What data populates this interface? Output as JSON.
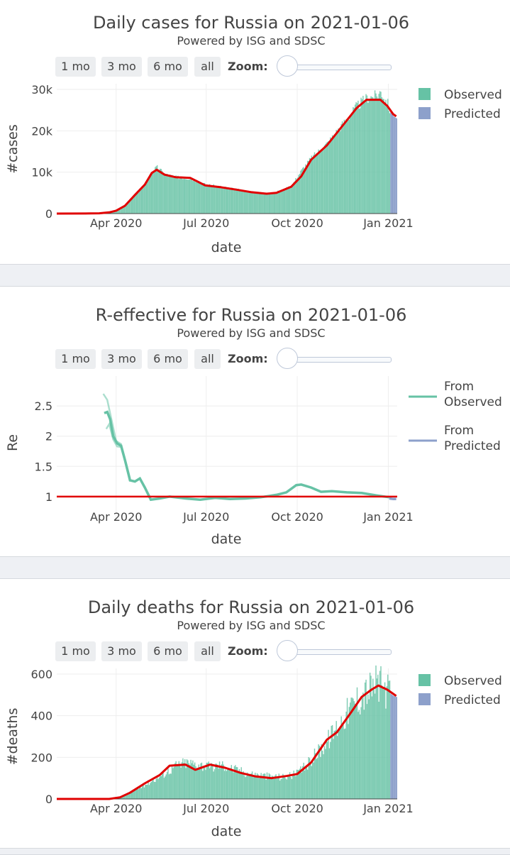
{
  "panels": [
    {
      "title": "Daily cases for Russia on 2021-01-06",
      "subtitle": "Powered by ISG and SDSC",
      "buttons": [
        "1 mo",
        "3 mo",
        "6 mo",
        "all"
      ],
      "zoom_label": "Zoom:",
      "legend": [
        "Observed",
        "Predicted"
      ]
    },
    {
      "title": "R-effective for Russia on 2021-01-06",
      "subtitle": "Powered by ISG and SDSC",
      "buttons": [
        "1 mo",
        "3 mo",
        "6 mo",
        "all"
      ],
      "zoom_label": "Zoom:",
      "legend": [
        "From Observed",
        "From Predicted"
      ]
    },
    {
      "title": "Daily deaths for Russia on 2021-01-06",
      "subtitle": "Powered by ISG and SDSC",
      "buttons": [
        "1 mo",
        "3 mo",
        "6 mo",
        "all"
      ],
      "zoom_label": "Zoom:",
      "legend": [
        "Observed",
        "Predicted"
      ]
    }
  ],
  "colors": {
    "observed": "#66c2a5",
    "predicted": "#8da0cb",
    "trend": "#e00000",
    "grid": "#eeeeee",
    "text": "#444444"
  },
  "chart_data": [
    {
      "type": "bar",
      "title": "Daily cases for Russia on 2021-01-06",
      "subtitle": "Powered by ISG and SDSC",
      "xlabel": "date",
      "ylabel": "#cases",
      "x_ticks": [
        "Apr 2020",
        "Jul 2020",
        "Oct 2020",
        "Jan 2021"
      ],
      "x_tick_dates": [
        "2020-04-01",
        "2020-07-01",
        "2020-10-01",
        "2021-01-01"
      ],
      "y_ticks": [
        "0",
        "10k",
        "20k",
        "30k"
      ],
      "y_tick_values": [
        0,
        10000,
        20000,
        30000
      ],
      "ylim": [
        0,
        30000
      ],
      "xlim": [
        "2020-02-01",
        "2021-01-10"
      ],
      "legend_position": "top-right",
      "series": [
        {
          "name": "Observed",
          "kind": "bar",
          "points": [
            [
              "2020-02-01",
              0
            ],
            [
              "2020-03-01",
              10
            ],
            [
              "2020-03-15",
              60
            ],
            [
              "2020-03-25",
              400
            ],
            [
              "2020-04-01",
              800
            ],
            [
              "2020-04-10",
              1800
            ],
            [
              "2020-04-20",
              4500
            ],
            [
              "2020-04-30",
              7000
            ],
            [
              "2020-05-07",
              10300
            ],
            [
              "2020-05-12",
              11200
            ],
            [
              "2020-05-20",
              9500
            ],
            [
              "2020-05-31",
              8800
            ],
            [
              "2020-06-15",
              8500
            ],
            [
              "2020-06-30",
              7000
            ],
            [
              "2020-07-15",
              6500
            ],
            [
              "2020-07-31",
              5800
            ],
            [
              "2020-08-15",
              5200
            ],
            [
              "2020-08-31",
              4800
            ],
            [
              "2020-09-15",
              5500
            ],
            [
              "2020-09-25",
              6800
            ],
            [
              "2020-10-05",
              10500
            ],
            [
              "2020-10-15",
              13500
            ],
            [
              "2020-10-31",
              17000
            ],
            [
              "2020-11-15",
              21500
            ],
            [
              "2020-11-30",
              26000
            ],
            [
              "2020-12-10",
              28000
            ],
            [
              "2020-12-20",
              28500
            ],
            [
              "2020-12-24",
              29500
            ],
            [
              "2020-12-31",
              26500
            ],
            [
              "2021-01-02",
              25000
            ]
          ]
        },
        {
          "name": "Predicted",
          "kind": "bar",
          "points": [
            [
              "2021-01-03",
              24500
            ],
            [
              "2021-01-06",
              23500
            ],
            [
              "2021-01-09",
              23000
            ]
          ]
        },
        {
          "name": "trend",
          "kind": "line",
          "points": [
            [
              "2020-02-01",
              0
            ],
            [
              "2020-03-01",
              10
            ],
            [
              "2020-03-15",
              60
            ],
            [
              "2020-03-25",
              300
            ],
            [
              "2020-04-01",
              700
            ],
            [
              "2020-04-10",
              1900
            ],
            [
              "2020-04-20",
              4500
            ],
            [
              "2020-04-30",
              7000
            ],
            [
              "2020-05-07",
              9800
            ],
            [
              "2020-05-12",
              10600
            ],
            [
              "2020-05-20",
              9400
            ],
            [
              "2020-05-31",
              8800
            ],
            [
              "2020-06-15",
              8600
            ],
            [
              "2020-06-30",
              6800
            ],
            [
              "2020-07-15",
              6400
            ],
            [
              "2020-07-31",
              5800
            ],
            [
              "2020-08-15",
              5200
            ],
            [
              "2020-08-31",
              4800
            ],
            [
              "2020-09-10",
              5000
            ],
            [
              "2020-09-25",
              6500
            ],
            [
              "2020-10-05",
              9000
            ],
            [
              "2020-10-15",
              13000
            ],
            [
              "2020-10-31",
              16500
            ],
            [
              "2020-11-15",
              21000
            ],
            [
              "2020-11-30",
              25500
            ],
            [
              "2020-12-10",
              27500
            ],
            [
              "2020-12-24",
              27500
            ],
            [
              "2020-12-31",
              26000
            ],
            [
              "2021-01-06",
              24000
            ],
            [
              "2021-01-09",
              23500
            ]
          ]
        }
      ]
    },
    {
      "type": "line",
      "title": "R-effective for Russia on 2021-01-06",
      "subtitle": "Powered by ISG and SDSC",
      "xlabel": "date",
      "ylabel": "Re",
      "x_ticks": [
        "Apr 2020",
        "Jul 2020",
        "Oct 2020",
        "Jan 2021"
      ],
      "x_tick_dates": [
        "2020-04-01",
        "2020-07-01",
        "2020-10-01",
        "2021-01-01"
      ],
      "y_ticks": [
        "1",
        "1.5",
        "2",
        "2.5"
      ],
      "y_tick_values": [
        1,
        1.5,
        2,
        2.5
      ],
      "ylim": [
        0.6,
        2.9
      ],
      "xlim": [
        "2020-02-01",
        "2021-01-10"
      ],
      "grid": true,
      "legend_position": "top-right",
      "threshold": 1,
      "series": [
        {
          "name": "From Observed",
          "kind": "line",
          "points": [
            [
              "2020-03-20",
              2.38
            ],
            [
              "2020-03-23",
              2.4
            ],
            [
              "2020-03-26",
              2.28
            ],
            [
              "2020-03-29",
              2.0
            ],
            [
              "2020-04-02",
              1.88
            ],
            [
              "2020-04-06",
              1.84
            ],
            [
              "2020-04-10",
              1.6
            ],
            [
              "2020-04-15",
              1.27
            ],
            [
              "2020-04-20",
              1.25
            ],
            [
              "2020-04-25",
              1.3
            ],
            [
              "2020-04-30",
              1.15
            ],
            [
              "2020-05-06",
              0.95
            ],
            [
              "2020-05-15",
              0.97
            ],
            [
              "2020-05-25",
              1.0
            ],
            [
              "2020-06-10",
              0.97
            ],
            [
              "2020-06-25",
              0.95
            ],
            [
              "2020-07-10",
              0.98
            ],
            [
              "2020-07-25",
              0.96
            ],
            [
              "2020-08-10",
              0.97
            ],
            [
              "2020-08-25",
              0.99
            ],
            [
              "2020-09-10",
              1.03
            ],
            [
              "2020-09-20",
              1.07
            ],
            [
              "2020-09-30",
              1.19
            ],
            [
              "2020-10-05",
              1.2
            ],
            [
              "2020-10-15",
              1.15
            ],
            [
              "2020-10-25",
              1.08
            ],
            [
              "2020-11-05",
              1.09
            ],
            [
              "2020-11-20",
              1.07
            ],
            [
              "2020-12-05",
              1.06
            ],
            [
              "2020-12-20",
              1.02
            ],
            [
              "2021-01-02",
              0.99
            ]
          ]
        },
        {
          "name": "From Observed upper",
          "kind": "line",
          "points": [
            [
              "2020-03-19",
              2.7
            ],
            [
              "2020-03-23",
              2.6
            ],
            [
              "2020-03-27",
              2.3
            ],
            [
              "2020-04-01",
              1.92
            ],
            [
              "2020-04-06",
              1.87
            ],
            [
              "2020-04-10",
              1.62
            ],
            [
              "2020-04-15",
              1.3
            ]
          ]
        },
        {
          "name": "From Observed lower",
          "kind": "line",
          "points": [
            [
              "2020-03-22",
              2.12
            ],
            [
              "2020-03-25",
              2.2
            ],
            [
              "2020-03-29",
              1.95
            ],
            [
              "2020-04-02",
              1.83
            ],
            [
              "2020-04-06",
              1.82
            ],
            [
              "2020-04-10",
              1.58
            ],
            [
              "2020-04-15",
              1.25
            ]
          ]
        },
        {
          "name": "From Predicted",
          "kind": "line",
          "points": [
            [
              "2021-01-02",
              0.97
            ],
            [
              "2021-01-06",
              0.96
            ],
            [
              "2021-01-09",
              0.96
            ]
          ]
        }
      ]
    },
    {
      "type": "bar",
      "title": "Daily deaths for Russia on 2021-01-06",
      "subtitle": "Powered by ISG and SDSC",
      "xlabel": "date",
      "ylabel": "#deaths",
      "x_ticks": [
        "Apr 2020",
        "Jul 2020",
        "Oct 2020",
        "Jan 2021"
      ],
      "x_tick_dates": [
        "2020-04-01",
        "2020-07-01",
        "2020-10-01",
        "2021-01-01"
      ],
      "y_ticks": [
        "0",
        "200",
        "400",
        "600"
      ],
      "y_tick_values": [
        0,
        200,
        400,
        600
      ],
      "ylim": [
        0,
        600
      ],
      "xlim": [
        "2020-02-01",
        "2021-01-10"
      ],
      "legend_position": "top-right",
      "series": [
        {
          "name": "Observed",
          "kind": "bar",
          "points": [
            [
              "2020-02-01",
              0
            ],
            [
              "2020-03-20",
              0
            ],
            [
              "2020-04-01",
              5
            ],
            [
              "2020-04-15",
              30
            ],
            [
              "2020-04-30",
              70
            ],
            [
              "2020-05-15",
              110
            ],
            [
              "2020-05-31",
              160
            ],
            [
              "2020-06-10",
              175
            ],
            [
              "2020-06-25",
              165
            ],
            [
              "2020-07-05",
              150
            ],
            [
              "2020-07-15",
              165
            ],
            [
              "2020-07-31",
              140
            ],
            [
              "2020-08-15",
              120
            ],
            [
              "2020-08-31",
              110
            ],
            [
              "2020-09-15",
              105
            ],
            [
              "2020-09-30",
              120
            ],
            [
              "2020-10-10",
              160
            ],
            [
              "2020-10-20",
              220
            ],
            [
              "2020-10-31",
              280
            ],
            [
              "2020-11-10",
              350
            ],
            [
              "2020-11-20",
              420
            ],
            [
              "2020-11-30",
              480
            ],
            [
              "2020-12-10",
              520
            ],
            [
              "2020-12-20",
              560
            ],
            [
              "2020-12-25",
              545
            ],
            [
              "2021-01-02",
              500
            ]
          ]
        },
        {
          "name": "Predicted",
          "kind": "bar",
          "points": [
            [
              "2021-01-03",
              505
            ],
            [
              "2021-01-06",
              495
            ],
            [
              "2021-01-09",
              490
            ]
          ]
        },
        {
          "name": "trend",
          "kind": "line",
          "points": [
            [
              "2020-02-01",
              0
            ],
            [
              "2020-03-25",
              0
            ],
            [
              "2020-04-05",
              8
            ],
            [
              "2020-04-15",
              30
            ],
            [
              "2020-04-30",
              75
            ],
            [
              "2020-05-15",
              115
            ],
            [
              "2020-05-25",
              160
            ],
            [
              "2020-06-10",
              165
            ],
            [
              "2020-06-20",
              140
            ],
            [
              "2020-07-05",
              165
            ],
            [
              "2020-07-20",
              150
            ],
            [
              "2020-08-05",
              125
            ],
            [
              "2020-08-20",
              108
            ],
            [
              "2020-09-05",
              100
            ],
            [
              "2020-09-20",
              110
            ],
            [
              "2020-10-01",
              120
            ],
            [
              "2020-10-15",
              175
            ],
            [
              "2020-10-31",
              285
            ],
            [
              "2020-11-10",
              320
            ],
            [
              "2020-11-25",
              420
            ],
            [
              "2020-12-05",
              490
            ],
            [
              "2020-12-15",
              525
            ],
            [
              "2020-12-22",
              545
            ],
            [
              "2020-12-31",
              525
            ],
            [
              "2021-01-06",
              505
            ],
            [
              "2021-01-09",
              495
            ]
          ]
        }
      ]
    }
  ]
}
